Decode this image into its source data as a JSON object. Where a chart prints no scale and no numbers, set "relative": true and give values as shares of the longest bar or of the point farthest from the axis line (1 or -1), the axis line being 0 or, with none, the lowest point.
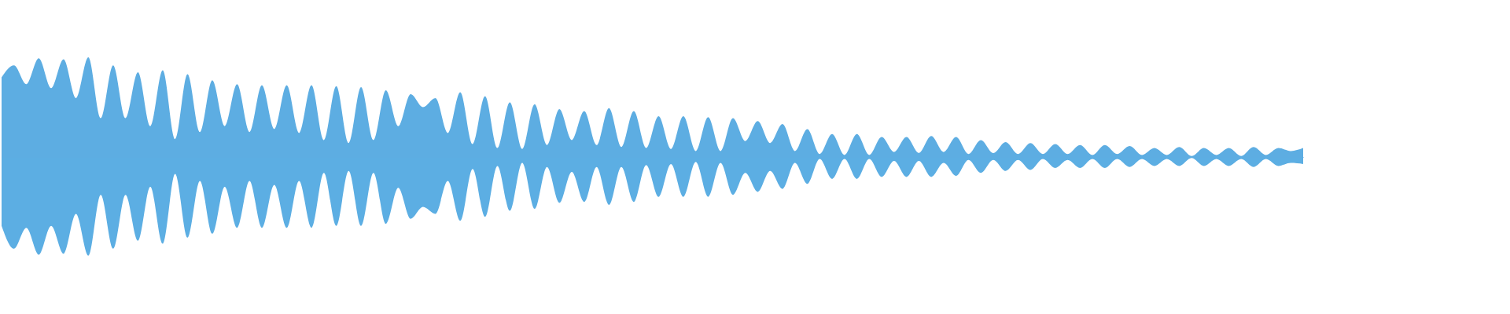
{
  "chart_data": {
    "type": "area",
    "relative": true,
    "categories": [
      null,
      null,
      null,
      null,
      null,
      null,
      null,
      null,
      null,
      null,
      null,
      null,
      null,
      null,
      null,
      null,
      null,
      null,
      null,
      null,
      null,
      null,
      null,
      null,
      null,
      null,
      null,
      null,
      null,
      null,
      null,
      null,
      null,
      null,
      null,
      null,
      null,
      null,
      null,
      null,
      null,
      null,
      null,
      null,
      null,
      null,
      null,
      null,
      null,
      null,
      null,
      null,
      null,
      null,
      null,
      null,
      null,
      null,
      null,
      null,
      null,
      null,
      null,
      null,
      null,
      null,
      null,
      null,
      null,
      null,
      null,
      null,
      null,
      null,
      null,
      null,
      null,
      null,
      null,
      null,
      null,
      null,
      null,
      null,
      null,
      null,
      null,
      null,
      null,
      null,
      null,
      null,
      null,
      null,
      null,
      null,
      null,
      null,
      null,
      null,
      null,
      null,
      null,
      null,
      null,
      null
    ],
    "series": [
      {
        "color": "#5dade2",
        "values": [
          0.8,
          0.92,
          0.73,
          0.99,
          0.69,
          0.98,
          0.59,
          1,
          0.39,
          0.92,
          0.39,
          0.85,
          0.31,
          0.87,
          0.18,
          0.83,
          0.25,
          0.77,
          0.31,
          0.73,
          0.25,
          0.72,
          0.28,
          0.72,
          0.24,
          0.72,
          0.17,
          0.71,
          0.14,
          0.7,
          0.17,
          0.67,
          0.31,
          0.63,
          0.5,
          0.59,
          0.24,
          0.65,
          0.13,
          0.61,
          0.09,
          0.55,
          0.08,
          0.53,
          0.12,
          0.48,
          0.17,
          0.46,
          0.12,
          0.49,
          0.1,
          0.46,
          0.09,
          0.41,
          0.08,
          0.41,
          0.06,
          0.4,
          0.06,
          0.39,
          0.16,
          0.36,
          0.14,
          0.33,
          0.06,
          0.28,
          0.03,
          0.23,
          0.02,
          0.23,
          0.02,
          0.2,
          0.05,
          0.2,
          0.04,
          0.21,
          0.05,
          0.2,
          0.03,
          0.17,
          0.04,
          0.15,
          0.03,
          0.14,
          0.03,
          0.13,
          0.03,
          0.12,
          0.02,
          0.12,
          0.03,
          0.11,
          0.02,
          0.09,
          0.02,
          0.1,
          0.01,
          0.09,
          0.02,
          0.09,
          0.01,
          0.1,
          0.02,
          0.09,
          0.06,
          0.09
        ]
      },
      {
        "color": "#5caee3",
        "values": [
          -0.69,
          -0.92,
          -0.71,
          -0.98,
          -0.69,
          -0.97,
          -0.57,
          -0.99,
          -0.38,
          -0.92,
          -0.38,
          -0.84,
          -0.3,
          -0.87,
          -0.17,
          -0.81,
          -0.24,
          -0.77,
          -0.3,
          -0.71,
          -0.24,
          -0.71,
          -0.28,
          -0.71,
          -0.24,
          -0.71,
          -0.16,
          -0.69,
          -0.14,
          -0.69,
          -0.16,
          -0.67,
          -0.31,
          -0.62,
          -0.5,
          -0.57,
          -0.24,
          -0.64,
          -0.12,
          -0.6,
          -0.09,
          -0.54,
          -0.06,
          -0.52,
          -0.1,
          -0.46,
          -0.15,
          -0.45,
          -0.1,
          -0.48,
          -0.1,
          -0.45,
          -0.08,
          -0.4,
          -0.07,
          -0.4,
          -0.05,
          -0.4,
          -0.06,
          -0.38,
          -0.16,
          -0.35,
          -0.14,
          -0.32,
          -0.06,
          -0.27,
          -0.02,
          -0.22,
          -0.02,
          -0.22,
          -0.02,
          -0.2,
          -0.04,
          -0.2,
          -0.04,
          -0.2,
          -0.06,
          -0.19,
          -0.03,
          -0.16,
          -0.03,
          -0.14,
          -0.03,
          -0.13,
          -0.02,
          -0.11,
          -0.03,
          -0.11,
          -0.02,
          -0.11,
          -0.02,
          -0.1,
          -0.02,
          -0.09,
          -0.02,
          -0.09,
          -0.01,
          -0.09,
          -0.02,
          -0.09,
          -0.02,
          -0.1,
          -0.02,
          -0.09,
          -0.06,
          -0.07
        ]
      }
    ]
  }
}
